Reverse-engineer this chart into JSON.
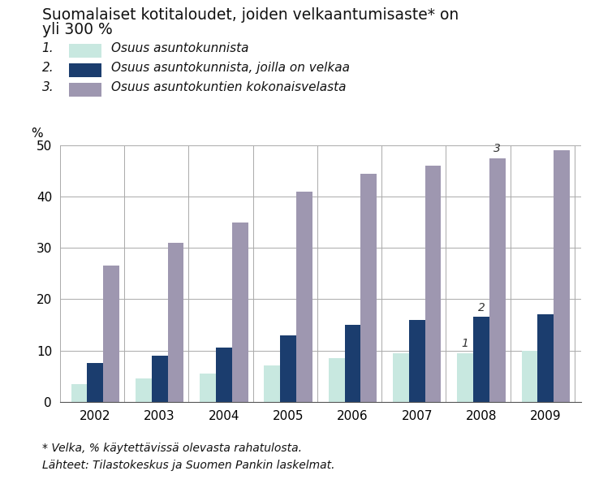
{
  "title_line1": "Suomalaiset kotitaloudet, joiden velkaantumisaste* on",
  "title_line2": "yli 300 %",
  "years": [
    2002,
    2003,
    2004,
    2005,
    2006,
    2007,
    2008,
    2009
  ],
  "series1_label": "Osuus asuntokunnista",
  "series2_label": "Osuus asuntokunnista, joilla on velkaa",
  "series3_label": "Osuus asuntokuntien kokonaisvelasta",
  "series1_values": [
    3.5,
    4.5,
    5.5,
    7.0,
    8.5,
    9.5,
    9.5,
    10.0
  ],
  "series2_values": [
    7.5,
    9.0,
    10.5,
    13.0,
    15.0,
    16.0,
    16.5,
    17.0
  ],
  "series3_values": [
    26.5,
    31.0,
    35.0,
    41.0,
    44.5,
    46.0,
    47.5,
    49.0
  ],
  "color1": "#c8e8e0",
  "color2": "#1b3d6e",
  "color3": "#9e97b0",
  "ylabel": "%",
  "ylim": [
    0,
    50
  ],
  "yticks": [
    0,
    10,
    20,
    30,
    40,
    50
  ],
  "footnote1": "* Velka, % käytettävissä olevasta rahatulosta.",
  "footnote2": "Lähteet: Tilastokeskus ja Suomen Pankin laskelmat.",
  "annotation_year_idx": 6,
  "background_color": "#ffffff"
}
